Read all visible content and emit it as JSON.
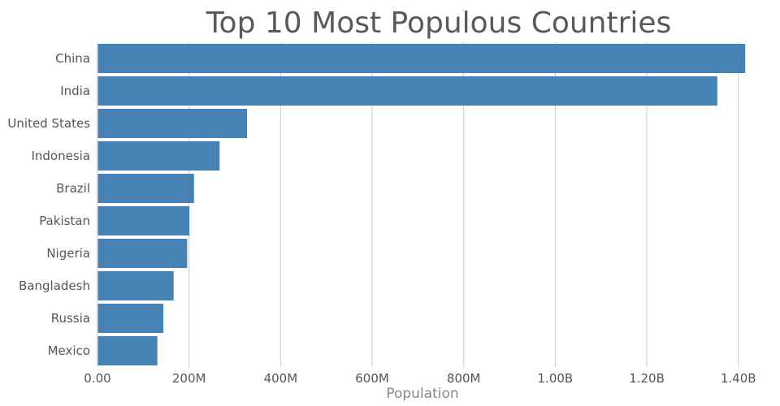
{
  "chart_data": {
    "type": "bar",
    "orientation": "horizontal",
    "title": "Top 10 Most Populous Countries",
    "xlabel": "Population",
    "ylabel": "",
    "categories": [
      "China",
      "India",
      "United States",
      "Indonesia",
      "Brazil",
      "Pakistan",
      "Nigeria",
      "Bangladesh",
      "Russia",
      "Mexico"
    ],
    "values": [
      1415045928,
      1354051854,
      326766748,
      266794980,
      210867954,
      200813818,
      195875237,
      166368149,
      143964709,
      130759074
    ],
    "xlim": [
      0,
      1420000000
    ],
    "ticks": [
      0,
      200000000,
      400000000,
      600000000,
      800000000,
      1000000000,
      1200000000,
      1400000000
    ],
    "tick_labels": [
      "0.00",
      "200M",
      "400M",
      "600M",
      "800M",
      "1.00B",
      "1.20B",
      "1.40B"
    ],
    "grid": true,
    "bar_color": "#4682b4"
  }
}
